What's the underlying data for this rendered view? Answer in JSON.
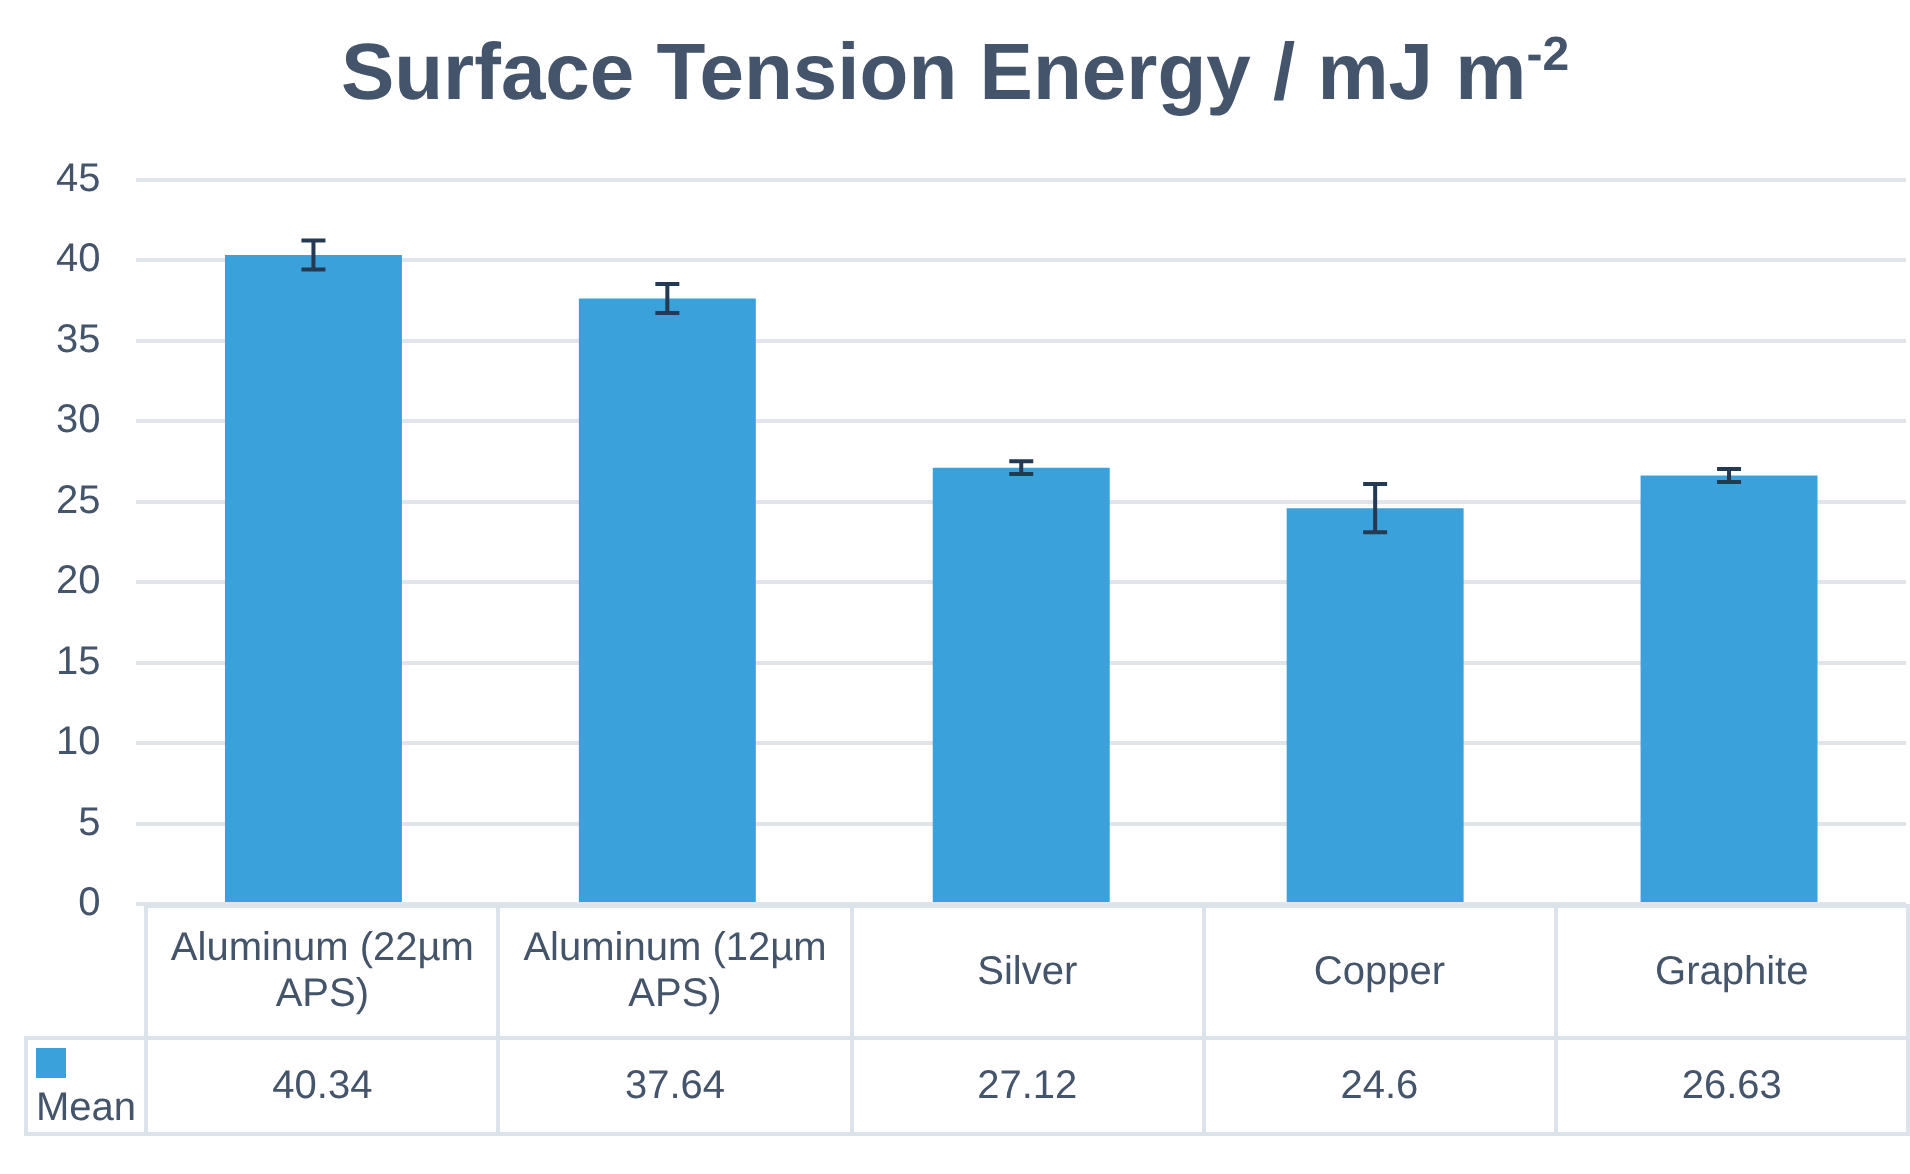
{
  "chart_data": {
    "type": "bar",
    "title": "Surface Tension Energy / mJ m$^{-2}$",
    "categories": [
      "Aluminum (22µm APS)",
      "Aluminum (12µm APS)",
      "Silver",
      "Copper",
      "Graphite"
    ],
    "series": [
      {
        "name": "Mean",
        "color": "#3ba1db",
        "values": [
          40.34,
          37.64,
          27.12,
          24.6,
          26.63
        ],
        "errors": [
          0.9,
          0.9,
          0.4,
          1.5,
          0.4
        ]
      }
    ],
    "ylim": [
      0,
      45
    ],
    "yticks": [
      0,
      5,
      10,
      15,
      20,
      25,
      30,
      35,
      40,
      45
    ],
    "grid": "y",
    "legend": "bottom",
    "data_labels": true
  }
}
